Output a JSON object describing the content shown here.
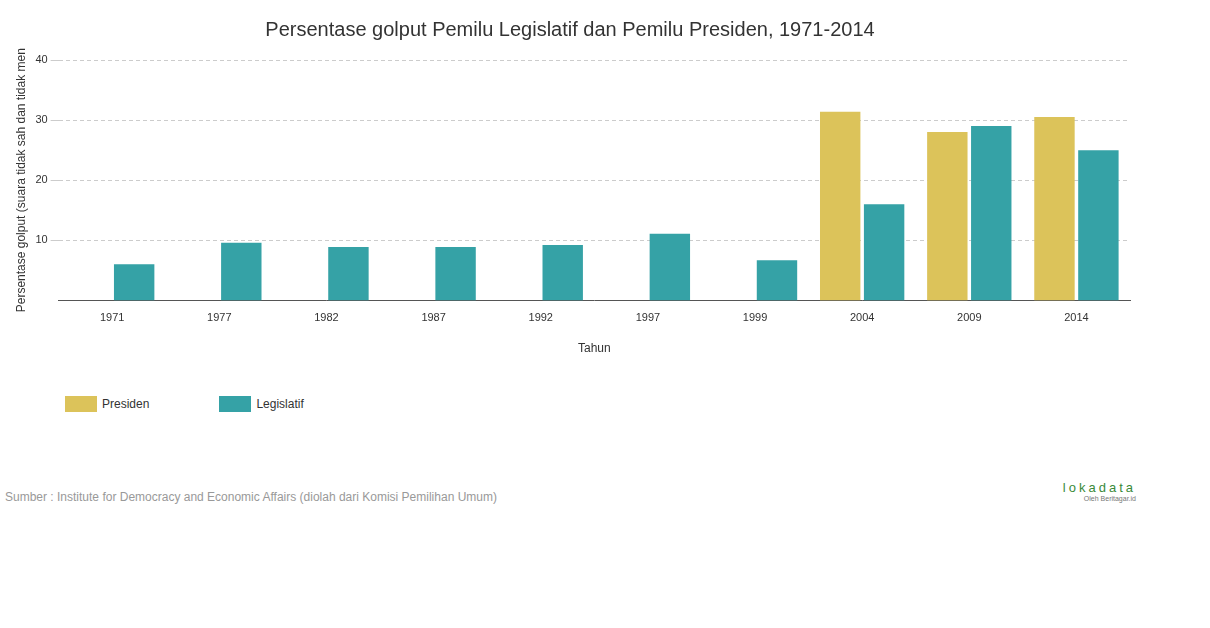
{
  "chart_data": {
    "type": "bar",
    "title": "Persentase golput Pemilu Legislatif dan Pemilu Presiden, 1971-2014",
    "x_label": "Tahun",
    "y_label": "Persentase golput (suara tidak sah dan tidak men",
    "categories": [
      "1971",
      "1977",
      "1982",
      "1987",
      "1992",
      "1997",
      "1999",
      "2004",
      "2009",
      "2014"
    ],
    "series": [
      {
        "name": "Presiden",
        "color": "#dcc35a",
        "values": [
          null,
          null,
          null,
          null,
          null,
          null,
          null,
          31.4,
          28,
          30.5
        ]
      },
      {
        "name": "Legislatif",
        "color": "#35a2a6",
        "values": [
          6,
          9.6,
          8.9,
          8.9,
          9.2,
          11.1,
          6.7,
          16,
          29,
          25
        ]
      }
    ],
    "ylim": [
      0,
      40
    ],
    "yticks": [
      10,
      20,
      30,
      40
    ],
    "grid": true,
    "legend": "bottom",
    "source": "Sumber : Institute for Democracy and Economic Affairs (diolah dari Komisi Pemilihan Umum)",
    "annotations": [
      "lokadata",
      "Oleh Beritagar.id"
    ]
  }
}
